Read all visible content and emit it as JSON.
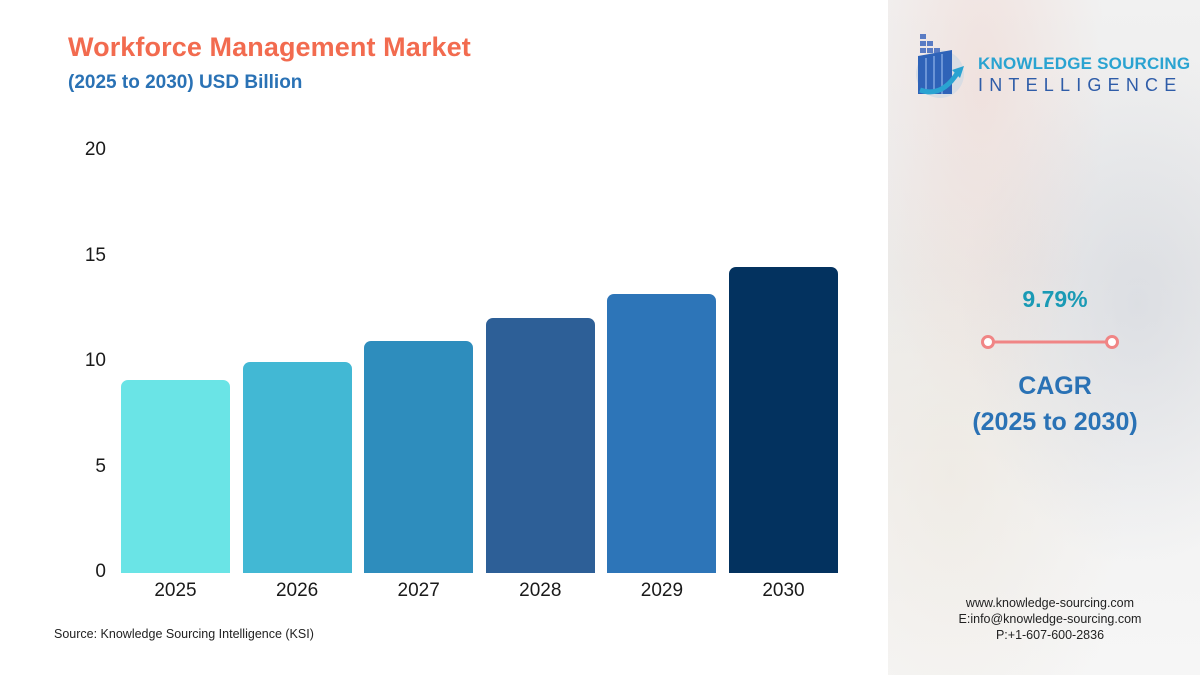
{
  "header": {
    "title": "Workforce Management Market",
    "subtitle": "(2025 to 2030) USD Billion"
  },
  "chart_data": {
    "type": "bar",
    "title": "Workforce Management Market",
    "subtitle": "(2025 to 2030) USD Billion",
    "xlabel": "",
    "ylabel": "USD Billion",
    "categories": [
      "2025",
      "2026",
      "2027",
      "2028",
      "2029",
      "2030"
    ],
    "values": [
      9.15,
      10.0,
      11.0,
      12.1,
      13.2,
      14.5
    ],
    "colors": [
      "#6ae4e6",
      "#42b8d4",
      "#2e8dbd",
      "#2d5f97",
      "#2d75b8",
      "#03325f"
    ],
    "ylim": [
      0,
      20
    ],
    "yticks": [
      "0",
      "5",
      "10",
      "15",
      "20"
    ],
    "grid": false,
    "legend": null
  },
  "source": "Source: Knowledge Sourcing Intelligence (KSI)",
  "sidebar": {
    "logo": {
      "line1": "KNOWLEDGE SOURCING",
      "line2": "INTELLIGENCE"
    },
    "cagr_value": "9.79%",
    "cagr_label": "CAGR",
    "cagr_period": "(2025 to 2030)",
    "contact": {
      "website": "www.knowledge-sourcing.com",
      "email": "E:info@knowledge-sourcing.com",
      "phone": "P:+1-607-600-2836"
    }
  },
  "colors": {
    "title": "#f26b4f",
    "subtitle": "#2a72b5",
    "cagr_value": "#1a9ab5",
    "cagr_connector": "#f08585"
  }
}
